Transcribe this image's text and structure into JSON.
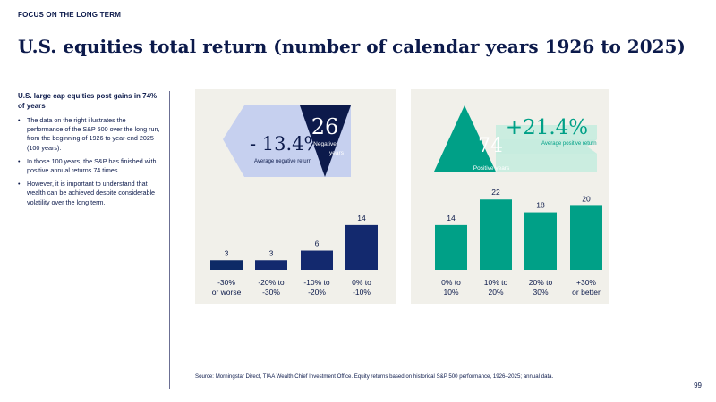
{
  "header": {
    "eyebrow": "FOCUS ON THE LONG TERM",
    "title": "U.S. equities total return (number of calendar years 1926 to 2025)"
  },
  "sidebar": {
    "heading": "U.S. large cap equities post gains in 74% of years",
    "bullets": [
      "The data on the right illustrates the performance of the S&P 500 over the long run, from the beginning of 1926 to year-end 2025 (100 years).",
      "In those 100 years, the S&P has finished with positive annual returns 74 times.",
      "However, it is important to understand that wealth can be achieved despite considerable volatility over the long term."
    ]
  },
  "callouts": {
    "negative": {
      "average_return": "- 13.4%",
      "average_label": "Average negative return",
      "count": "26",
      "count_label": [
        "Negative",
        "years"
      ]
    },
    "positive": {
      "average_return": "+21.4%",
      "average_label": "Average positive return",
      "count": "74",
      "count_label": "Positive years"
    }
  },
  "colors": {
    "panel_bg": "#f1f0ea",
    "navy": "#0c1a4b",
    "dark_blue": "#13296e",
    "mid_navy": "#0d2a66",
    "periwinkle": "#c6d0ef",
    "teal": "#00a087",
    "teal_light": "#c7ecdf"
  },
  "chart_data": [
    {
      "type": "bar",
      "categories": [
        [
          "-30%",
          "or worse"
        ],
        [
          "-20% to",
          "-30%"
        ],
        [
          "-10% to",
          "-20%"
        ],
        [
          "0% to",
          "-10%"
        ]
      ],
      "values": [
        3,
        3,
        6,
        14
      ],
      "bar_colors": [
        "#0d2a66",
        "#13296e",
        "#13296e",
        "#13296e"
      ]
    },
    {
      "type": "bar",
      "categories": [
        [
          "0% to",
          "10%"
        ],
        [
          "10% to",
          "20%"
        ],
        [
          "20% to",
          "30%"
        ],
        [
          "+30%",
          "or better"
        ]
      ],
      "values": [
        14,
        22,
        18,
        20
      ],
      "bar_colors": [
        "#00a087",
        "#00a087",
        "#00a087",
        "#00a087"
      ]
    }
  ],
  "footer": {
    "source": "Source: Morningstar Direct, TIAA Wealth Chief Investment Office. Equity returns based on historical S&P 500 performance, 1926–2025; annual data.",
    "page_number": "99"
  }
}
